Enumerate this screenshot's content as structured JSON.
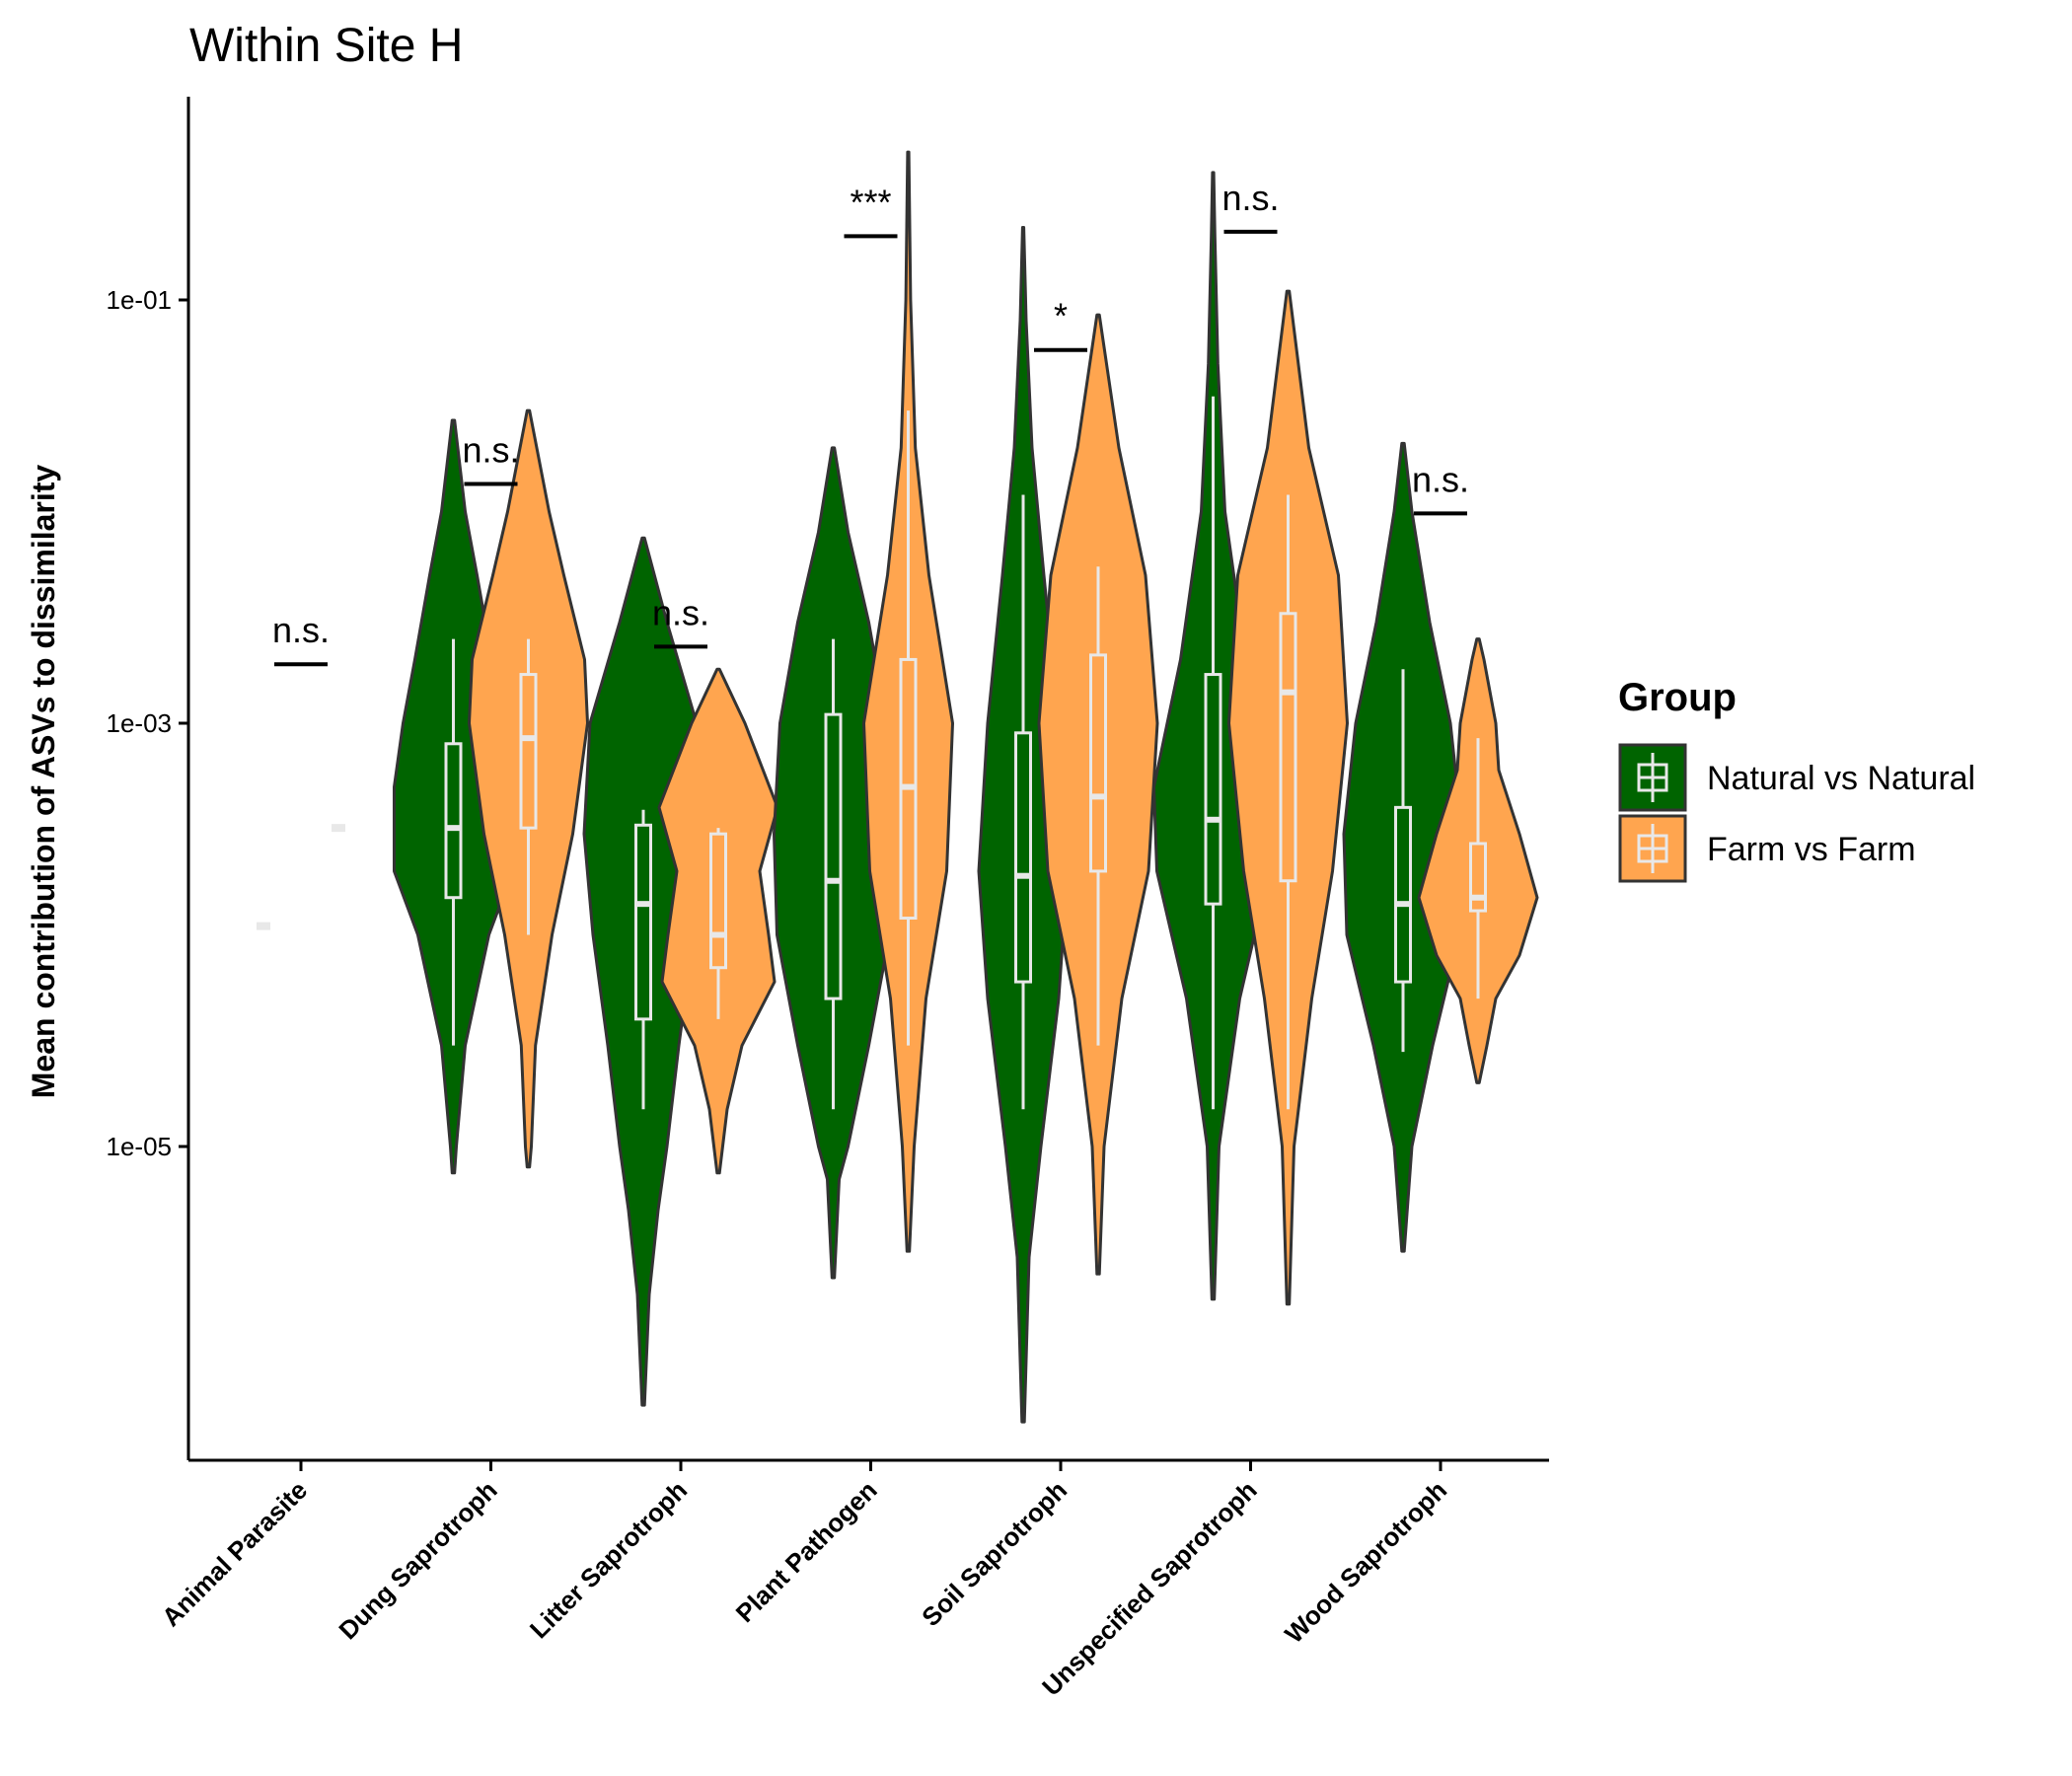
{
  "chart_data": {
    "type": "violin",
    "title": "Within Site H",
    "xlabel": "",
    "ylabel": "Mean contribution of ASVs to dissimilarity",
    "y_scale": "log10",
    "ylim": [
      3e-07,
      0.9
    ],
    "y_ticks": [
      1e-05,
      0.001,
      0.1
    ],
    "y_tick_labels": [
      "1e-05",
      "1e-03",
      "1e-01"
    ],
    "grid": false,
    "colors": {
      "natural": "#006400",
      "farm": "#FFA54F",
      "box": "#E8E8E8",
      "outline": "#333333"
    },
    "legend": {
      "title": "Group",
      "position": "right",
      "entries": [
        {
          "label": "Natural vs Natural",
          "color": "#006400"
        },
        {
          "label": "Farm vs Farm",
          "color": "#FFA54F"
        }
      ]
    },
    "categories": [
      "Animal Parasite",
      "Dung Saprotroph",
      "Litter Saprotroph",
      "Plant Pathogen",
      "Soil Saprotroph",
      "Unspecified Saprotroph",
      "Wood Saprotroph"
    ],
    "series": [
      {
        "name": "Natural vs Natural",
        "groups": [
          {
            "min": 0.00011,
            "q1": 0.00011,
            "median": 0.00011,
            "q3": 0.00011,
            "max": 0.00011,
            "vmin": 0.00011,
            "vmax": 0.00011,
            "density": []
          },
          {
            "min": 3e-05,
            "q1": 0.00015,
            "median": 0.00032,
            "q3": 0.0008,
            "max": 0.0025,
            "vmin": 7.5e-06,
            "vmax": 0.027,
            "density": [
              [
                7.5e-06,
                0.02
              ],
              [
                1e-05,
                0.05
              ],
              [
                3e-05,
                0.2
              ],
              [
                0.0001,
                0.6
              ],
              [
                0.0002,
                1.0
              ],
              [
                0.0005,
                1.0
              ],
              [
                0.001,
                0.85
              ],
              [
                0.002,
                0.65
              ],
              [
                0.005,
                0.4
              ],
              [
                0.01,
                0.2
              ],
              [
                0.027,
                0.02
              ]
            ]
          },
          {
            "min": 1.5e-05,
            "q1": 4e-05,
            "median": 0.00014,
            "q3": 0.00033,
            "max": 0.00039,
            "vmin": 6e-07,
            "vmax": 0.0075,
            "density": [
              [
                6e-07,
                0.02
              ],
              [
                2e-06,
                0.1
              ],
              [
                5e-06,
                0.25
              ],
              [
                1e-05,
                0.4
              ],
              [
                3e-05,
                0.6
              ],
              [
                0.0001,
                0.85
              ],
              [
                0.0003,
                1.0
              ],
              [
                0.001,
                0.9
              ],
              [
                0.003,
                0.4
              ],
              [
                0.0075,
                0.02
              ]
            ]
          },
          {
            "min": 1.5e-05,
            "q1": 5e-05,
            "median": 0.00018,
            "q3": 0.0011,
            "max": 0.0025,
            "vmin": 2.4e-06,
            "vmax": 0.02,
            "density": [
              [
                2.4e-06,
                0.02
              ],
              [
                7e-06,
                0.1
              ],
              [
                1e-05,
                0.25
              ],
              [
                3e-05,
                0.6
              ],
              [
                0.0001,
                0.95
              ],
              [
                0.0003,
                1.0
              ],
              [
                0.001,
                0.9
              ],
              [
                0.003,
                0.6
              ],
              [
                0.008,
                0.25
              ],
              [
                0.02,
                0.02
              ]
            ]
          },
          {
            "min": 1.5e-05,
            "q1": 6e-05,
            "median": 0.00019,
            "q3": 0.0009,
            "max": 0.012,
            "vmin": 5e-07,
            "vmax": 0.22,
            "density": [
              [
                5e-07,
                0.02
              ],
              [
                3e-06,
                0.1
              ],
              [
                1e-05,
                0.3
              ],
              [
                5e-05,
                0.6
              ],
              [
                0.0002,
                0.75
              ],
              [
                0.001,
                0.6
              ],
              [
                0.005,
                0.35
              ],
              [
                0.02,
                0.15
              ],
              [
                0.08,
                0.05
              ],
              [
                0.22,
                0.01
              ]
            ]
          },
          {
            "min": 1.5e-05,
            "q1": 0.00014,
            "median": 0.00035,
            "q3": 0.0017,
            "max": 0.035,
            "vmin": 1.9e-06,
            "vmax": 0.4,
            "density": [
              [
                1.9e-06,
                0.02
              ],
              [
                1e-05,
                0.1
              ],
              [
                5e-05,
                0.45
              ],
              [
                0.0002,
                0.95
              ],
              [
                0.0005,
                1.0
              ],
              [
                0.002,
                0.55
              ],
              [
                0.01,
                0.2
              ],
              [
                0.05,
                0.08
              ],
              [
                0.2,
                0.03
              ],
              [
                0.4,
                0.01
              ]
            ]
          },
          {
            "min": 2.8e-05,
            "q1": 6e-05,
            "median": 0.00014,
            "q3": 0.0004,
            "max": 0.0018,
            "vmin": 3.2e-06,
            "vmax": 0.021,
            "density": [
              [
                3.2e-06,
                0.02
              ],
              [
                1e-05,
                0.15
              ],
              [
                3e-05,
                0.5
              ],
              [
                0.0001,
                0.95
              ],
              [
                0.0003,
                1.0
              ],
              [
                0.001,
                0.8
              ],
              [
                0.003,
                0.45
              ],
              [
                0.01,
                0.15
              ],
              [
                0.021,
                0.02
              ]
            ]
          }
        ]
      },
      {
        "name": "Farm vs Farm",
        "groups": [
          {
            "min": 0.00032,
            "q1": 0.00032,
            "median": 0.00032,
            "q3": 0.00032,
            "max": 0.00032,
            "vmin": 0.00032,
            "vmax": 0.00032,
            "density": []
          },
          {
            "min": 0.0001,
            "q1": 0.00032,
            "median": 0.00085,
            "q3": 0.0017,
            "max": 0.0025,
            "vmin": 8e-06,
            "vmax": 0.03,
            "density": [
              [
                8e-06,
                0.02
              ],
              [
                1e-05,
                0.05
              ],
              [
                3e-05,
                0.12
              ],
              [
                0.0001,
                0.4
              ],
              [
                0.0003,
                0.75
              ],
              [
                0.001,
                1.0
              ],
              [
                0.002,
                0.95
              ],
              [
                0.005,
                0.6
              ],
              [
                0.01,
                0.35
              ],
              [
                0.03,
                0.02
              ]
            ]
          },
          {
            "min": 4e-05,
            "q1": 7e-05,
            "median": 0.0001,
            "q3": 0.0003,
            "max": 0.00032,
            "vmin": 7.5e-06,
            "vmax": 0.0018,
            "density": [
              [
                7.5e-06,
                0.02
              ],
              [
                1.5e-05,
                0.15
              ],
              [
                3e-05,
                0.4
              ],
              [
                6e-05,
                0.95
              ],
              [
                0.0001,
                0.85
              ],
              [
                0.0002,
                0.7
              ],
              [
                0.0004,
                1.0
              ],
              [
                0.001,
                0.45
              ],
              [
                0.0018,
                0.02
              ]
            ]
          },
          {
            "min": 3e-05,
            "q1": 0.00012,
            "median": 0.0005,
            "q3": 0.002,
            "max": 0.03,
            "vmin": 3.2e-06,
            "vmax": 0.5,
            "density": [
              [
                3.2e-06,
                0.02
              ],
              [
                1e-05,
                0.1
              ],
              [
                5e-05,
                0.3
              ],
              [
                0.0002,
                0.65
              ],
              [
                0.001,
                0.75
              ],
              [
                0.005,
                0.35
              ],
              [
                0.02,
                0.12
              ],
              [
                0.1,
                0.04
              ],
              [
                0.5,
                0.01
              ]
            ]
          },
          {
            "min": 3e-05,
            "q1": 0.0002,
            "median": 0.00045,
            "q3": 0.0021,
            "max": 0.0055,
            "vmin": 2.5e-06,
            "vmax": 0.085,
            "density": [
              [
                2.5e-06,
                0.02
              ],
              [
                1e-05,
                0.1
              ],
              [
                5e-05,
                0.4
              ],
              [
                0.0002,
                0.85
              ],
              [
                0.001,
                1.0
              ],
              [
                0.005,
                0.8
              ],
              [
                0.02,
                0.35
              ],
              [
                0.085,
                0.02
              ]
            ]
          },
          {
            "min": 1.5e-05,
            "q1": 0.00018,
            "median": 0.0014,
            "q3": 0.0033,
            "max": 0.012,
            "vmin": 1.8e-06,
            "vmax": 0.11,
            "density": [
              [
                1.8e-06,
                0.02
              ],
              [
                1e-05,
                0.1
              ],
              [
                5e-05,
                0.4
              ],
              [
                0.0002,
                0.75
              ],
              [
                0.001,
                1.0
              ],
              [
                0.005,
                0.85
              ],
              [
                0.02,
                0.35
              ],
              [
                0.11,
                0.02
              ]
            ]
          },
          {
            "min": 5e-05,
            "q1": 0.00013,
            "median": 0.00015,
            "q3": 0.00027,
            "max": 0.00085,
            "vmin": 2e-05,
            "vmax": 0.0025,
            "density": [
              [
                2e-05,
                0.02
              ],
              [
                3e-05,
                0.15
              ],
              [
                5e-05,
                0.3
              ],
              [
                8e-05,
                0.7
              ],
              [
                0.00015,
                1.0
              ],
              [
                0.0003,
                0.7
              ],
              [
                0.0006,
                0.35
              ],
              [
                0.001,
                0.3
              ],
              [
                0.002,
                0.1
              ],
              [
                0.0025,
                0.02
              ]
            ]
          }
        ]
      }
    ],
    "comparisons": [
      {
        "label": "n.s.",
        "y": 0.0019
      },
      {
        "label": "n.s.",
        "y": 0.0135
      },
      {
        "label": "n.s.",
        "y": 0.0023
      },
      {
        "label": "***",
        "y": 0.2
      },
      {
        "label": "*",
        "y": 0.058
      },
      {
        "label": "n.s.",
        "y": 0.21
      },
      {
        "label": "n.s.",
        "y": 0.0098
      }
    ]
  }
}
